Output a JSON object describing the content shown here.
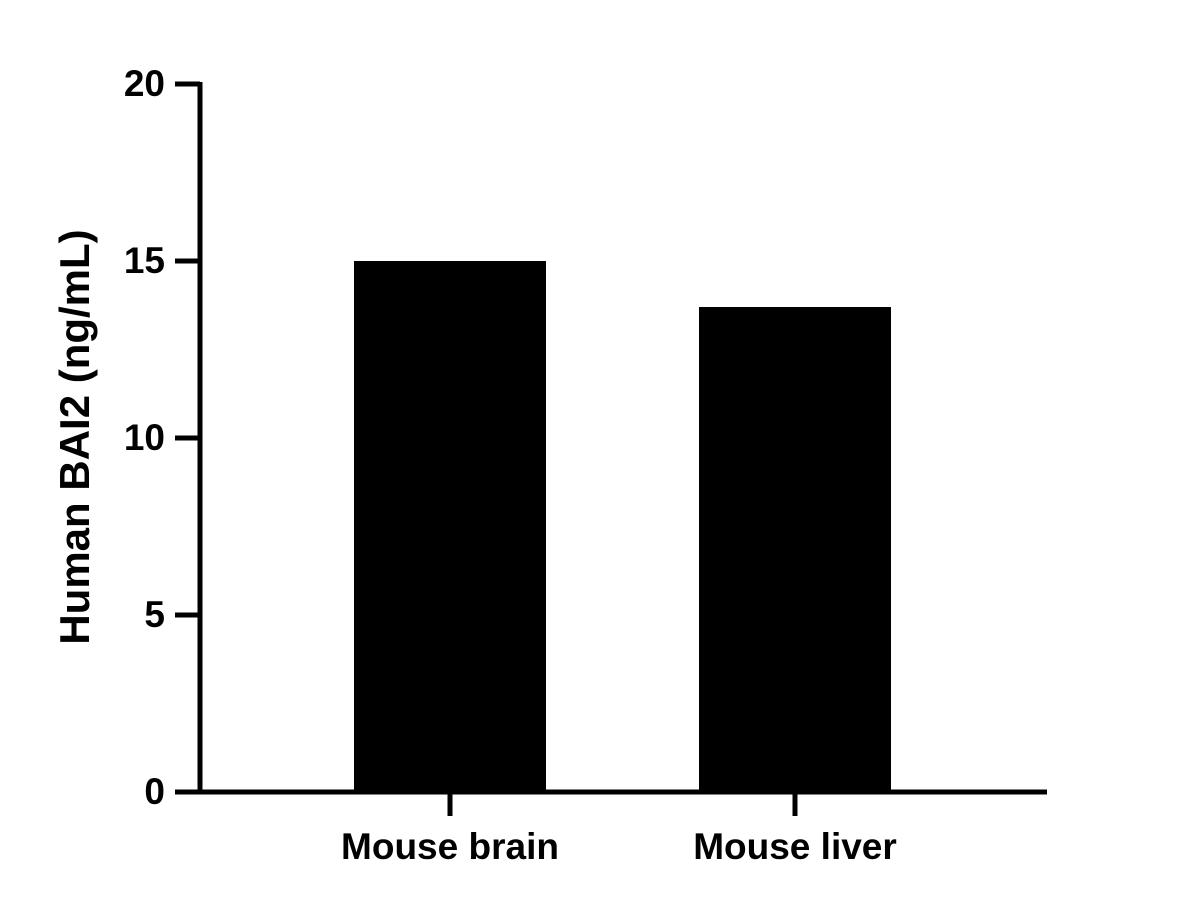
{
  "chart_data": {
    "type": "bar",
    "y_label": "Human BAI2 (ng/mL)",
    "categories": [
      "Mouse brain",
      "Mouse liver"
    ],
    "values": [
      15,
      13.7
    ],
    "color": "#000000",
    "ylim": [
      0,
      20
    ],
    "yticks": [
      0,
      5,
      10,
      15,
      20
    ]
  }
}
